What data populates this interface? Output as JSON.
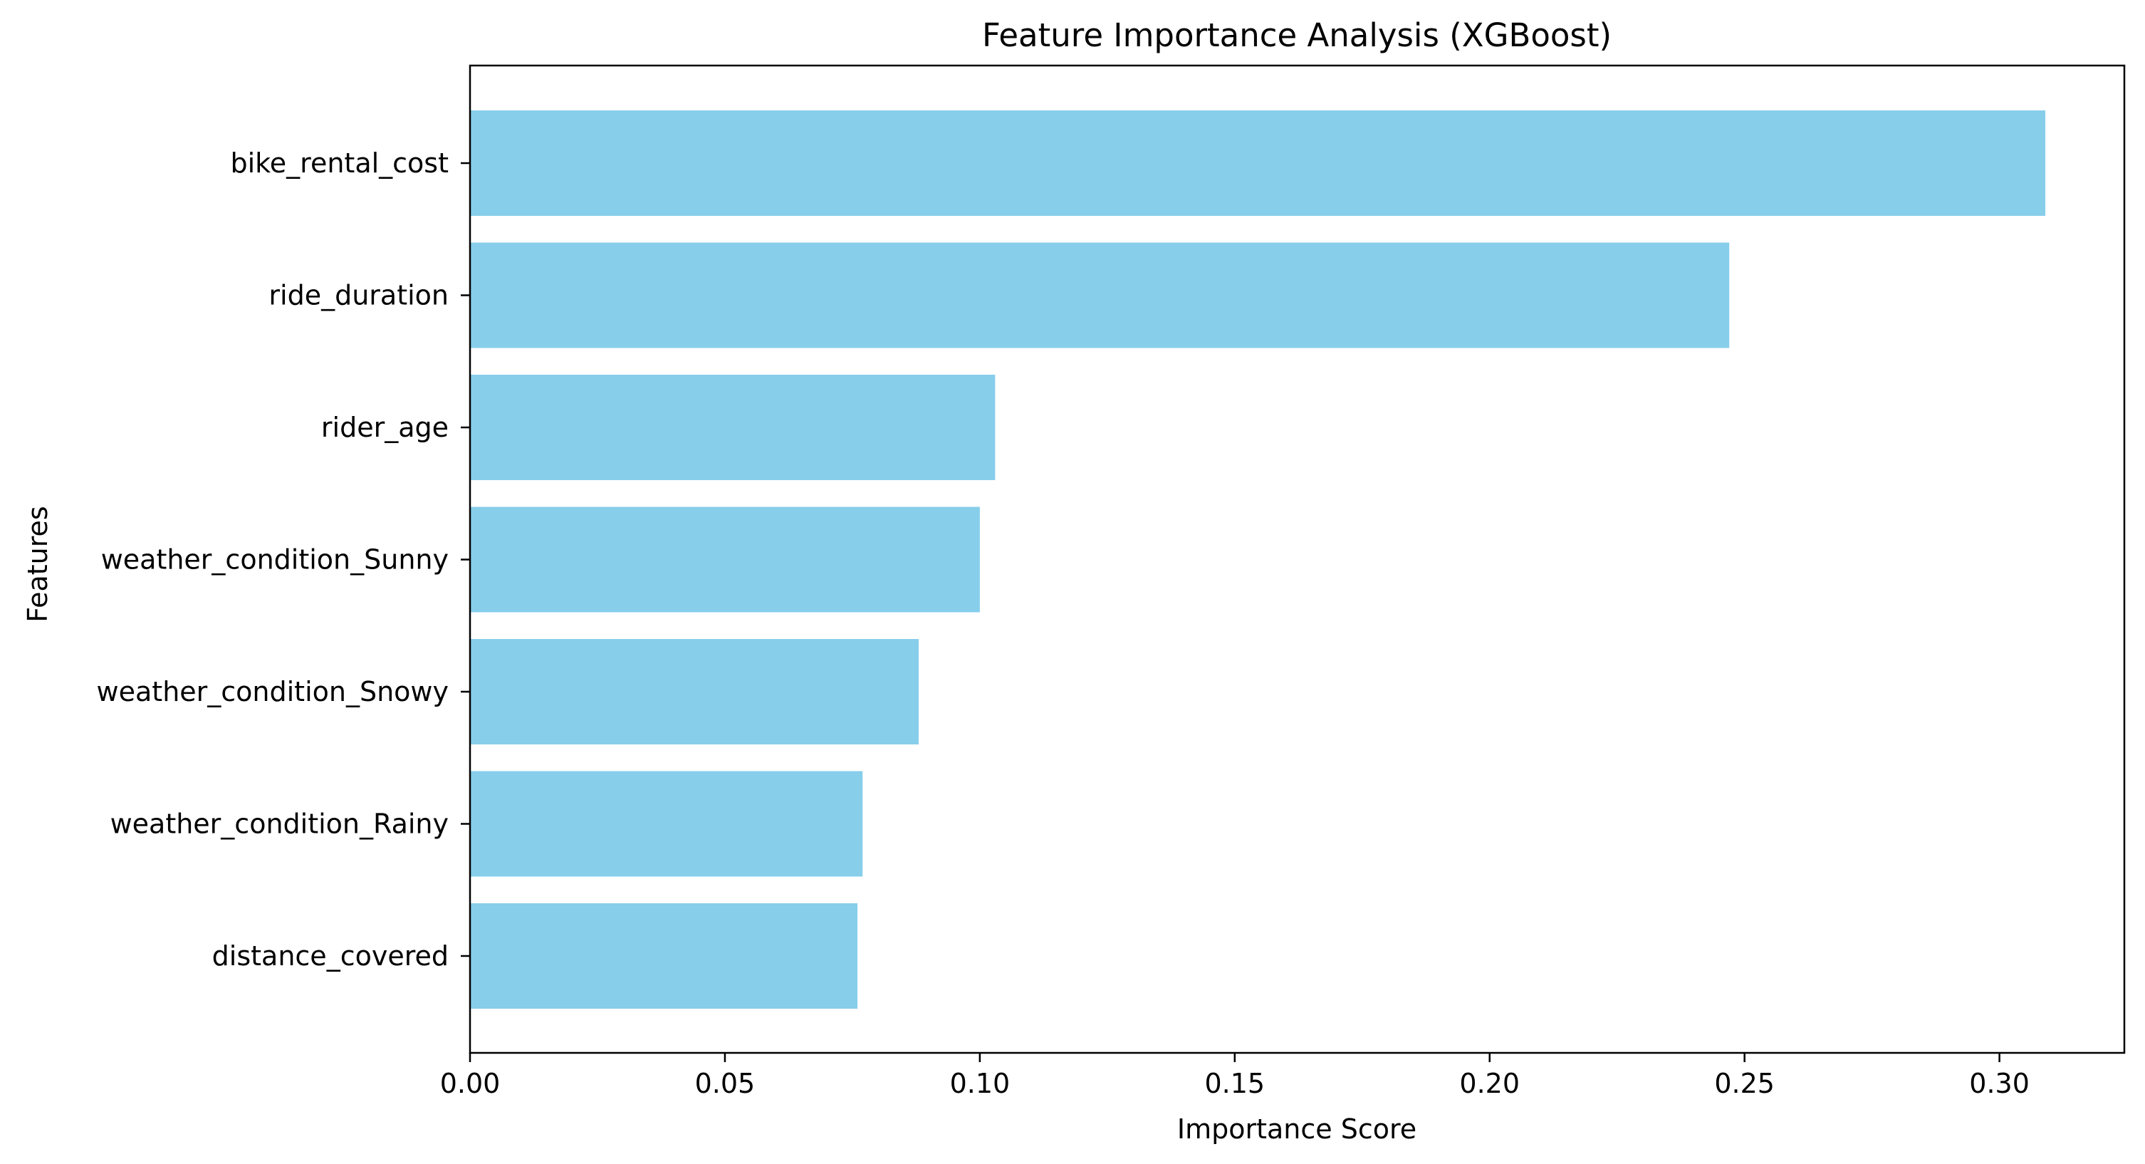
{
  "chart_data": {
    "type": "bar",
    "orientation": "horizontal",
    "title": "Feature Importance Analysis (XGBoost)",
    "xlabel": "Importance Score",
    "ylabel": "Features",
    "categories": [
      "bike_rental_cost",
      "ride_duration",
      "rider_age",
      "weather_condition_Sunny",
      "weather_condition_Snowy",
      "weather_condition_Rainy",
      "distance_covered"
    ],
    "values": [
      0.309,
      0.247,
      0.103,
      0.1,
      0.088,
      0.077,
      0.076
    ],
    "xlim": [
      0,
      0.3245
    ],
    "xticks": [
      0.0,
      0.05,
      0.1,
      0.15,
      0.2,
      0.25,
      0.3
    ],
    "xtick_labels": [
      "0.00",
      "0.05",
      "0.10",
      "0.15",
      "0.20",
      "0.25",
      "0.30"
    ],
    "bar_color": "#87ceeb",
    "grid": false,
    "legend": "none"
  }
}
